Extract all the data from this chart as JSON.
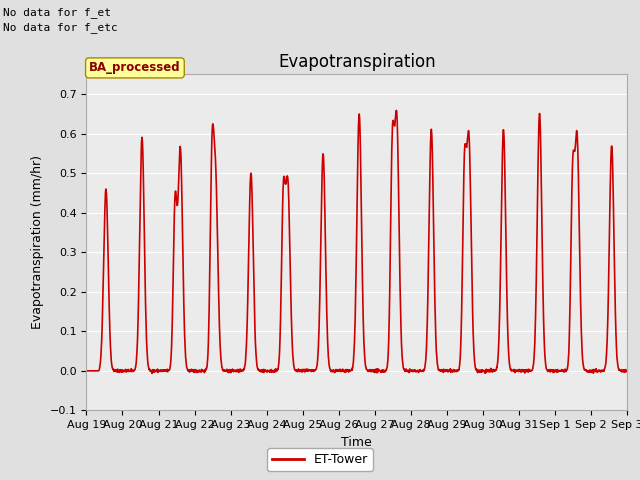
{
  "title": "Evapotranspiration",
  "xlabel": "Time",
  "ylabel": "Evapotranspiration (mm/hr)",
  "ylim": [
    -0.1,
    0.75
  ],
  "yticks": [
    -0.1,
    0.0,
    0.1,
    0.2,
    0.3,
    0.4,
    0.5,
    0.6,
    0.7
  ],
  "background_color": "#e0e0e0",
  "plot_bg_color": "#ebebeb",
  "line_color": "#cc0000",
  "line_width": 1.2,
  "legend_label": "ET-Tower",
  "legend_line_color": "#cc0000",
  "box_label": "BA_processed",
  "box_bg": "#ffff99",
  "box_border": "#999900",
  "note1": "No data for f_et",
  "note2": "No data for f_etc",
  "x_labels": [
    "Aug 19",
    "Aug 20",
    "Aug 21",
    "Aug 22",
    "Aug 23",
    "Aug 24",
    "Aug 25",
    "Aug 26",
    "Aug 27",
    "Aug 28",
    "Aug 29",
    "Aug 30",
    "Aug 31",
    "Sep 1",
    "Sep 2",
    "Sep 3"
  ],
  "title_fontsize": 12,
  "axis_label_fontsize": 9,
  "tick_fontsize": 8
}
